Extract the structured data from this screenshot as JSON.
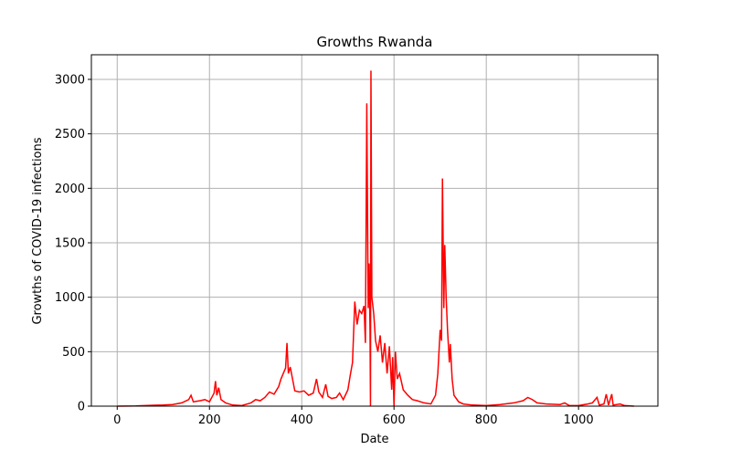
{
  "chart_data": {
    "type": "line",
    "title": "Growths Rwanda",
    "xlabel": "Date",
    "ylabel": "Growths of COVID-19 infections",
    "x": [
      0,
      20,
      40,
      60,
      80,
      100,
      120,
      140,
      155,
      160,
      165,
      180,
      190,
      200,
      205,
      210,
      213,
      216,
      220,
      225,
      235,
      250,
      270,
      290,
      300,
      310,
      320,
      330,
      340,
      350,
      355,
      360,
      365,
      368,
      371,
      375,
      380,
      385,
      395,
      405,
      415,
      425,
      432,
      437,
      445,
      452,
      457,
      465,
      475,
      482,
      490,
      500,
      505,
      510,
      515,
      520,
      525,
      530,
      535,
      538,
      541,
      544,
      546,
      548,
      549,
      550,
      552,
      556,
      560,
      565,
      570,
      575,
      580,
      585,
      590,
      595,
      597,
      600,
      603,
      607,
      612,
      620,
      630,
      640,
      650,
      665,
      680,
      690,
      695,
      700,
      703,
      705,
      708,
      710,
      713,
      716,
      720,
      722,
      726,
      730,
      740,
      750,
      770,
      800,
      830,
      860,
      880,
      890,
      900,
      910,
      930,
      960,
      970,
      980,
      1000,
      1020,
      1030,
      1040,
      1045,
      1055,
      1060,
      1065,
      1072,
      1075,
      1090,
      1100,
      1120
    ],
    "series": [
      {
        "name": "Rwanda",
        "color": "#ff0000",
        "values": [
          0,
          1,
          2,
          5,
          8,
          10,
          15,
          30,
          60,
          100,
          40,
          50,
          60,
          40,
          80,
          120,
          230,
          100,
          170,
          60,
          30,
          10,
          5,
          30,
          60,
          50,
          80,
          130,
          110,
          180,
          250,
          300,
          350,
          580,
          300,
          360,
          250,
          140,
          130,
          140,
          100,
          120,
          250,
          130,
          80,
          200,
          90,
          70,
          80,
          120,
          60,
          150,
          280,
          400,
          960,
          750,
          880,
          850,
          920,
          580,
          2780,
          900,
          1310,
          700,
          0,
          3080,
          1000,
          850,
          600,
          500,
          650,
          400,
          580,
          300,
          550,
          150,
          450,
          0,
          500,
          250,
          300,
          150,
          100,
          60,
          50,
          30,
          20,
          100,
          300,
          700,
          600,
          2090,
          900,
          1480,
          1000,
          700,
          400,
          570,
          250,
          100,
          40,
          20,
          10,
          5,
          15,
          30,
          50,
          80,
          60,
          30,
          20,
          15,
          30,
          5,
          5,
          20,
          30,
          80,
          10,
          20,
          110,
          10,
          110,
          10,
          20,
          5,
          0
        ]
      }
    ],
    "xlim": [
      -56,
      1172
    ],
    "ylim": [
      0,
      3226
    ],
    "xticks": [
      0,
      200,
      400,
      600,
      800,
      1000
    ],
    "yticks": [
      0,
      500,
      1000,
      1500,
      2000,
      2500,
      3000
    ],
    "grid": true
  }
}
